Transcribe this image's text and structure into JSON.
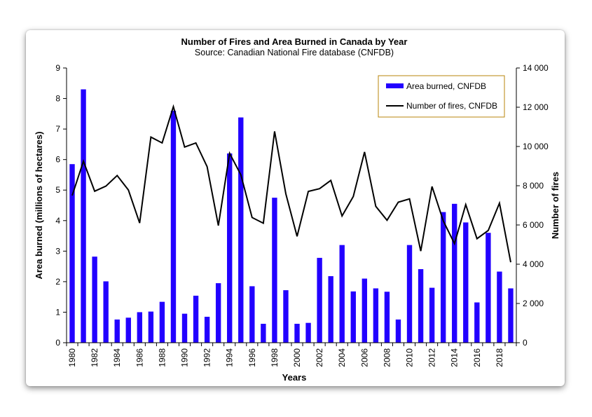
{
  "chart_data": {
    "type": "bar+line",
    "title": "Number of Fires and Area Burned in Canada by Year",
    "subtitle": "Source: Canadian National Fire database (CNFDB)",
    "xlabel": "Years",
    "ylabel_left": "Area burned (millions of hectares)",
    "ylabel_right": "Number of fires",
    "ylim_left": [
      0,
      9
    ],
    "ylim_right": [
      0,
      14000
    ],
    "yticks_left": [
      "0",
      "1",
      "2",
      "3",
      "4",
      "5",
      "6",
      "7",
      "8",
      "9"
    ],
    "yticks_right": [
      "0",
      "2 000",
      "4 000",
      "6 000",
      "8 000",
      "10 000",
      "12 000",
      "14 000"
    ],
    "x_tick_labels": [
      "1980",
      "1982",
      "1984",
      "1986",
      "1988",
      "1990",
      "1992",
      "1994",
      "1996",
      "1998",
      "2000",
      "2002",
      "2004",
      "2006",
      "2008",
      "2010",
      "2012",
      "2014",
      "2016",
      "2018"
    ],
    "legend_position": "top-right",
    "grid": false,
    "years": [
      1980,
      1981,
      1982,
      1983,
      1984,
      1985,
      1986,
      1987,
      1988,
      1989,
      1990,
      1991,
      1992,
      1993,
      1994,
      1995,
      1996,
      1997,
      1998,
      1999,
      2000,
      2001,
      2002,
      2003,
      2004,
      2005,
      2006,
      2007,
      2008,
      2009,
      2010,
      2011,
      2012,
      2013,
      2014,
      2015,
      2016,
      2017,
      2018,
      2019
    ],
    "series": [
      {
        "name": "Area burned, CNFDB",
        "type": "bar",
        "axis": "left",
        "color": "#2200ff",
        "values": [
          5.85,
          8.3,
          2.82,
          2.01,
          0.76,
          0.82,
          1.0,
          1.02,
          1.34,
          7.6,
          0.95,
          1.54,
          0.85,
          1.95,
          6.2,
          7.38,
          1.85,
          0.62,
          4.75,
          1.72,
          0.62,
          0.65,
          2.78,
          2.18,
          3.2,
          1.68,
          2.1,
          1.78,
          1.67,
          0.76,
          3.2,
          2.41,
          1.8,
          4.28,
          4.55,
          3.94,
          1.32,
          3.6,
          2.33,
          1.78
        ]
      },
      {
        "name": "Number of fires, CNFDB",
        "type": "line",
        "axis": "right",
        "color": "#000000",
        "values": [
          7500,
          9250,
          7720,
          7980,
          8520,
          7780,
          6100,
          10480,
          10180,
          12030,
          9970,
          10180,
          8970,
          5970,
          9650,
          8560,
          6380,
          6090,
          10770,
          7590,
          5420,
          7710,
          7850,
          8270,
          6460,
          7450,
          9720,
          6950,
          6240,
          7160,
          7330,
          4670,
          7960,
          6210,
          5050,
          7040,
          5300,
          5720,
          7110,
          4100
        ]
      }
    ]
  }
}
